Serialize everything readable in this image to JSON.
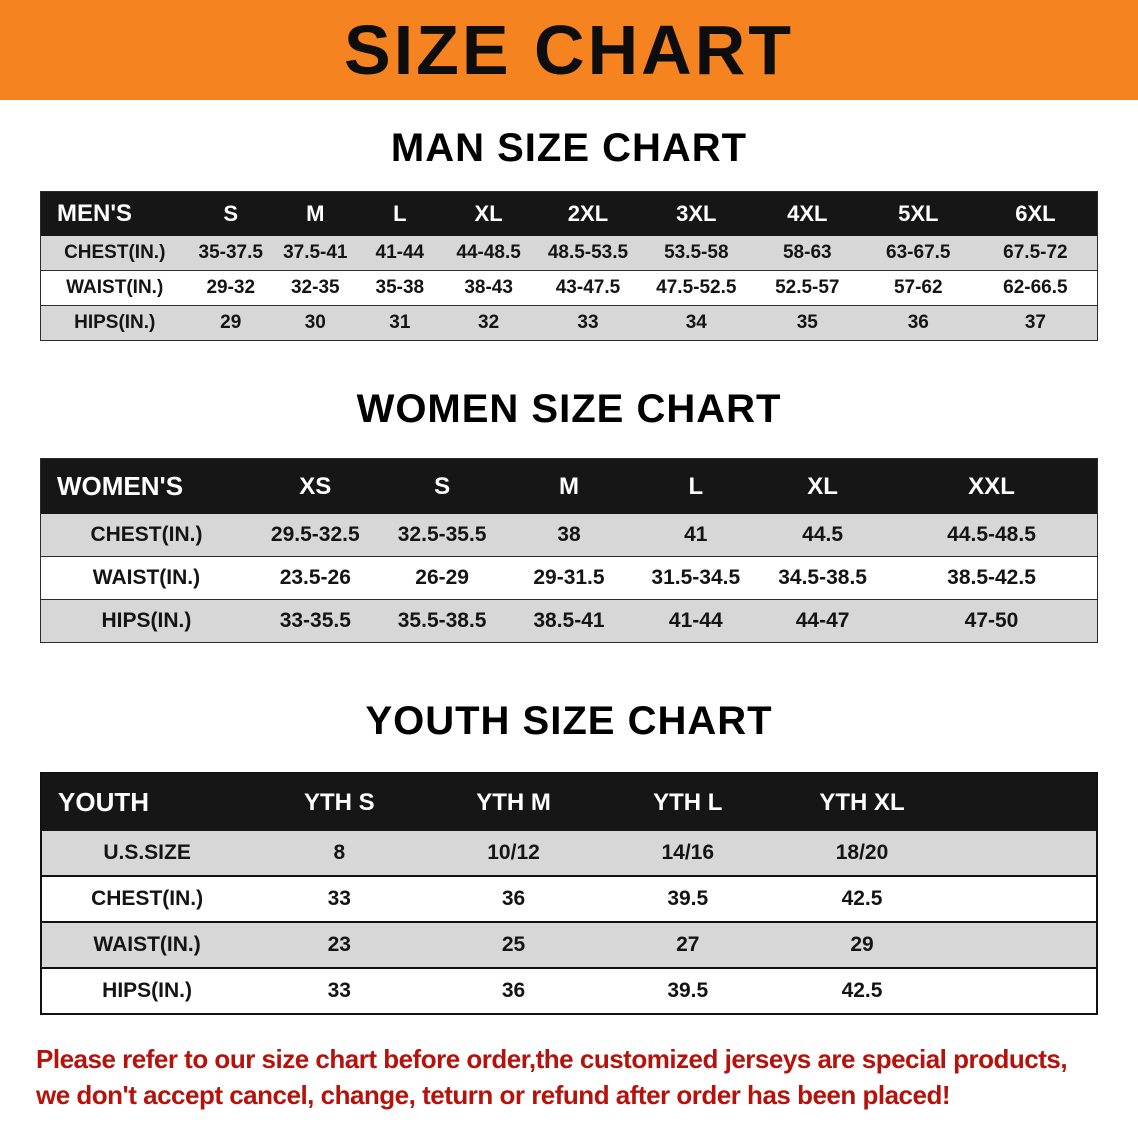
{
  "banner": {
    "title": "SIZE CHART",
    "bg_color": "#f5831f",
    "text_color": "#0d0d0d"
  },
  "men": {
    "heading": "MAN SIZE CHART",
    "table": {
      "header": [
        "MEN'S",
        "S",
        "M",
        "L",
        "XL",
        "2XL",
        "3XL",
        "4XL",
        "5XL",
        "6XL"
      ],
      "rows": [
        [
          "CHEST(IN.)",
          "35-37.5",
          "37.5-41",
          "41-44",
          "44-48.5",
          "48.5-53.5",
          "53.5-58",
          "58-63",
          "63-67.5",
          "67.5-72"
        ],
        [
          "WAIST(IN.)",
          "29-32",
          "32-35",
          "35-38",
          "38-43",
          "43-47.5",
          "47.5-52.5",
          "52.5-57",
          "57-62",
          "62-66.5"
        ],
        [
          "HIPS(IN.)",
          "29",
          "30",
          "31",
          "32",
          "33",
          "34",
          "35",
          "36",
          "37"
        ]
      ]
    }
  },
  "women": {
    "heading": "WOMEN SIZE CHART",
    "table": {
      "header": [
        "WOMEN'S",
        "XS",
        "S",
        "M",
        "L",
        "XL",
        "XXL"
      ],
      "rows": [
        [
          "CHEST(IN.)",
          "29.5-32.5",
          "32.5-35.5",
          "38",
          "41",
          "44.5",
          "44.5-48.5"
        ],
        [
          "WAIST(IN.)",
          "23.5-26",
          "26-29",
          "29-31.5",
          "31.5-34.5",
          "34.5-38.5",
          "38.5-42.5"
        ],
        [
          "HIPS(IN.)",
          "33-35.5",
          "35.5-38.5",
          "38.5-41",
          "41-44",
          "44-47",
          "47-50"
        ]
      ]
    }
  },
  "youth": {
    "heading": "YOUTH SIZE CHART",
    "table": {
      "header": [
        "YOUTH",
        "YTH S",
        "YTH M",
        "YTH L",
        "YTH XL",
        ""
      ],
      "rows": [
        [
          "U.S.SIZE",
          "8",
          "10/12",
          "14/16",
          "18/20",
          ""
        ],
        [
          "CHEST(IN.)",
          "33",
          "36",
          "39.5",
          "42.5",
          ""
        ],
        [
          "WAIST(IN.)",
          "23",
          "25",
          "27",
          "29",
          ""
        ],
        [
          "HIPS(IN.)",
          "33",
          "36",
          "39.5",
          "42.5",
          ""
        ]
      ]
    }
  },
  "footnote": {
    "line1": "Please refer to our size chart before order,the customized jerseys are special products,",
    "line2": "we don't accept cancel, change, teturn or refund after order has been placed!",
    "color": "#b5120b"
  }
}
